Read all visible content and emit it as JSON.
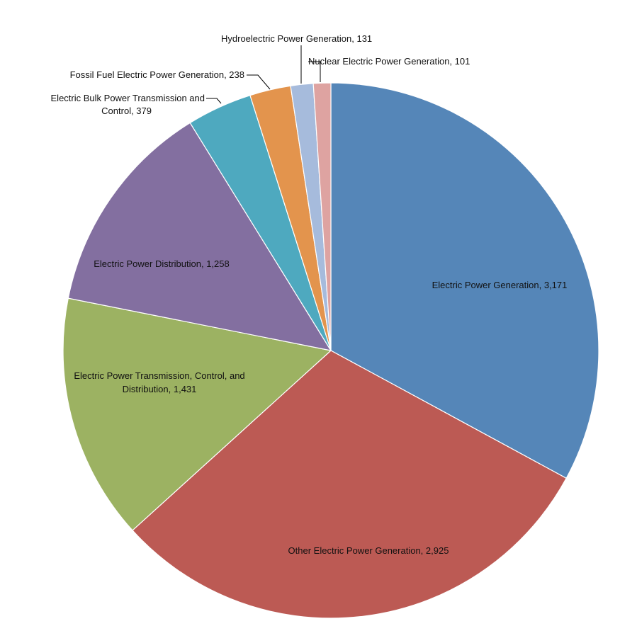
{
  "chart_data": {
    "type": "pie",
    "title": "",
    "legend": "none",
    "slices": [
      {
        "name": "Electric Power Generation",
        "value": 3171,
        "value_label": "3,171",
        "color": "#5586b8"
      },
      {
        "name": "Other Electric Power Generation",
        "value": 2925,
        "value_label": "2,925",
        "color": "#bc5a54"
      },
      {
        "name": "Electric Power Transmission, Control, and Distribution",
        "value": 1431,
        "value_label": "1,431",
        "color": "#9cb262"
      },
      {
        "name": "Electric Power Distribution",
        "value": 1258,
        "value_label": "1,258",
        "color": "#836fa0"
      },
      {
        "name": "Electric Bulk Power Transmission and Control",
        "value": 379,
        "value_label": "379",
        "color": "#4ea9bf"
      },
      {
        "name": "Fossil Fuel Electric Power Generation",
        "value": 238,
        "value_label": "238",
        "color": "#e3944d"
      },
      {
        "name": "Hydroelectric Power Generation",
        "value": 131,
        "value_label": "131",
        "color": "#a6bbdc"
      },
      {
        "name": "Nuclear Electric Power Generation",
        "value": 101,
        "value_label": "101",
        "color": "#dea3a1"
      }
    ]
  }
}
